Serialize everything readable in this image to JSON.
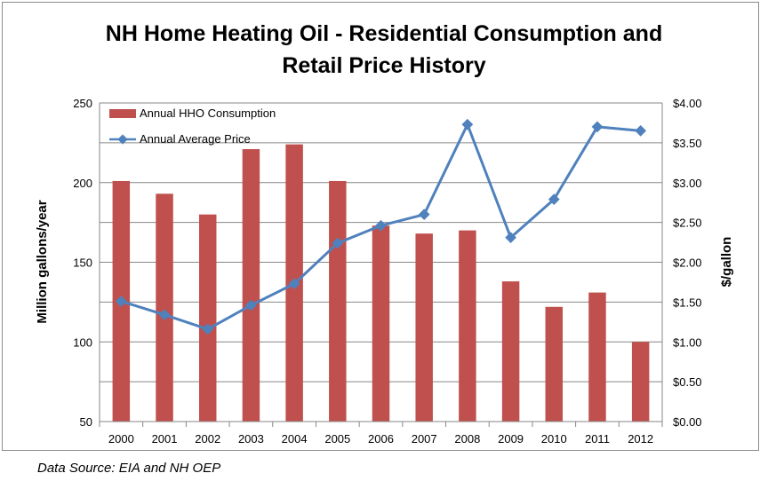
{
  "chart_data": {
    "type": "bar+line",
    "title": "NH Home Heating Oil - Residential Consumption and Retail Price History",
    "title_line1": "NH Home Heating Oil - Residential Consumption and",
    "title_line2": "Retail Price History",
    "categories": [
      "2000",
      "2001",
      "2002",
      "2003",
      "2004",
      "2005",
      "2006",
      "2007",
      "2008",
      "2009",
      "2010",
      "2011",
      "2012"
    ],
    "series": [
      {
        "name": "Annual HHO Consumption",
        "kind": "bar",
        "axis": "left",
        "color": "#c0504d",
        "values": [
          201,
          193,
          180,
          221,
          224,
          201,
          173,
          168,
          170,
          138,
          122,
          131,
          100
        ]
      },
      {
        "name": "Annual Average Price",
        "kind": "line",
        "axis": "right",
        "color": "#4f81bd",
        "values": [
          1.51,
          1.34,
          1.16,
          1.46,
          1.73,
          2.24,
          2.46,
          2.6,
          3.73,
          2.31,
          2.79,
          3.7,
          3.65
        ]
      }
    ],
    "ylabel_left": "Million gallons/year",
    "ylabel_right": "$/gallon",
    "ylim_left": [
      50,
      250
    ],
    "ylim_right": [
      0,
      4
    ],
    "left_ticks": [
      "250",
      "200",
      "150",
      "100",
      "50"
    ],
    "right_ticks": [
      "$4.00",
      "$3.50",
      "$3.00",
      "$2.50",
      "$2.00",
      "$1.50",
      "$1.00",
      "$0.50",
      "$0.00"
    ],
    "grid": true,
    "legend_position": "top-left"
  },
  "source_note": "Data Source: EIA and NH OEP"
}
